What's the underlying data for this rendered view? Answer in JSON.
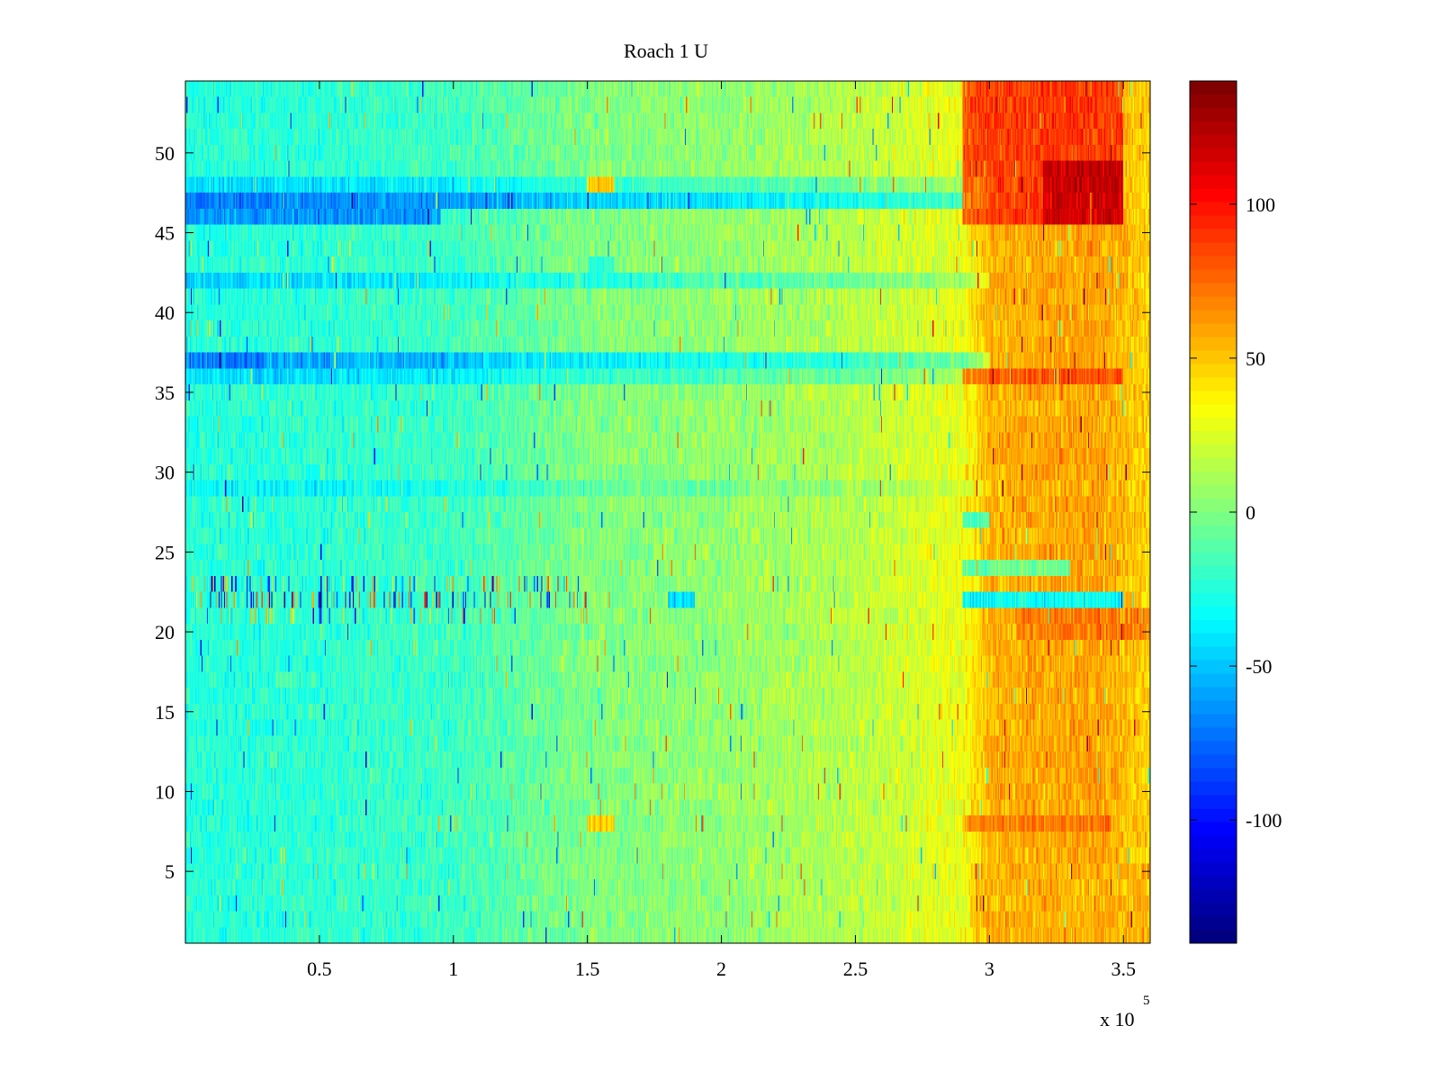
{
  "chart_data": {
    "type": "heatmap",
    "title": "Roach 1 U",
    "xlabel": "",
    "ylabel": "",
    "x_multiplier_label": {
      "base": "x 10",
      "exponent": "5"
    },
    "xlim": [
      0,
      360000
    ],
    "ylim": [
      0.5,
      54.5
    ],
    "x_ticks": [
      {
        "value": 50000,
        "label": "0.5"
      },
      {
        "value": 100000,
        "label": "1"
      },
      {
        "value": 150000,
        "label": "1.5"
      },
      {
        "value": 200000,
        "label": "2"
      },
      {
        "value": 250000,
        "label": "2.5"
      },
      {
        "value": 300000,
        "label": "3"
      },
      {
        "value": 350000,
        "label": "3.5"
      }
    ],
    "y_ticks": [
      {
        "value": 5,
        "label": "5"
      },
      {
        "value": 10,
        "label": "10"
      },
      {
        "value": 15,
        "label": "15"
      },
      {
        "value": 20,
        "label": "20"
      },
      {
        "value": 25,
        "label": "25"
      },
      {
        "value": 30,
        "label": "30"
      },
      {
        "value": 35,
        "label": "35"
      },
      {
        "value": 40,
        "label": "40"
      },
      {
        "value": 45,
        "label": "45"
      },
      {
        "value": 50,
        "label": "50"
      }
    ],
    "colorbar": {
      "colormap": "jet",
      "clim": [
        -140,
        140
      ],
      "ticks": [
        {
          "value": -100,
          "label": "-100"
        },
        {
          "value": -50,
          "label": "-50"
        },
        {
          "value": 0,
          "label": "0"
        },
        {
          "value": 50,
          "label": "50"
        },
        {
          "value": 100,
          "label": "100"
        }
      ]
    },
    "x_range": [
      0,
      360000
    ],
    "rows": 54,
    "trend_by_x": {
      "x": [
        0,
        50000,
        100000,
        150000,
        200000,
        250000,
        290000,
        300000,
        340000,
        360000
      ],
      "value": [
        -25,
        -22,
        -18,
        0,
        5,
        15,
        30,
        55,
        60,
        45
      ]
    },
    "row_offsets": [
      {
        "row": 47,
        "offset": -45
      },
      {
        "row": 48,
        "offset": -20
      },
      {
        "row": 37,
        "offset": -35
      },
      {
        "row": 36,
        "offset": -20
      },
      {
        "row": 42,
        "offset": -20
      },
      {
        "row": 29,
        "offset": -10
      }
    ],
    "hot_regions": [
      {
        "rows": [
          46,
          54
        ],
        "x": [
          290000,
          350000
        ],
        "value": 100
      },
      {
        "rows": [
          46,
          49
        ],
        "x": [
          320000,
          350000
        ],
        "value": 130
      },
      {
        "rows": [
          36,
          36
        ],
        "x": [
          290000,
          350000
        ],
        "value": 90
      },
      {
        "rows": [
          48,
          48
        ],
        "x": [
          150000,
          160000
        ],
        "value": 80
      },
      {
        "rows": [
          8,
          8
        ],
        "x": [
          150000,
          160000
        ],
        "value": 70
      },
      {
        "rows": [
          8,
          8
        ],
        "x": [
          290000,
          345000
        ],
        "value": 75
      },
      {
        "rows": [
          20,
          21
        ],
        "x": [
          310000,
          360000
        ],
        "value": 75
      },
      {
        "rows": [
          1,
          5
        ],
        "x": [
          295000,
          360000
        ],
        "value": 55
      }
    ],
    "cold_regions": [
      {
        "rows": [
          46,
          46
        ],
        "x": [
          0,
          95000
        ],
        "value": -80
      },
      {
        "rows": [
          37,
          37
        ],
        "x": [
          0,
          30000
        ],
        "value": -75
      },
      {
        "rows": [
          22,
          22
        ],
        "x": [
          290000,
          350000
        ],
        "value": -70
      },
      {
        "rows": [
          22,
          22
        ],
        "x": [
          180000,
          190000
        ],
        "value": -65
      },
      {
        "rows": [
          42,
          43
        ],
        "x": [
          150000,
          160000
        ],
        "value": -35
      },
      {
        "rows": [
          27,
          27
        ],
        "x": [
          290000,
          300000
        ],
        "value": -40
      },
      {
        "rows": [
          24,
          24
        ],
        "x": [
          290000,
          330000
        ],
        "value": -30
      }
    ],
    "noisy_rows": [
      {
        "row": 22,
        "x": [
          0,
          150000
        ],
        "spike_probability": 0.18,
        "amplitude": 110
      },
      {
        "row": 23,
        "x": [
          0,
          150000
        ],
        "spike_probability": 0.12,
        "amplitude": 100
      },
      {
        "row": 21,
        "x": [
          0,
          150000
        ],
        "spike_probability": 0.1,
        "amplitude": 90
      }
    ]
  }
}
